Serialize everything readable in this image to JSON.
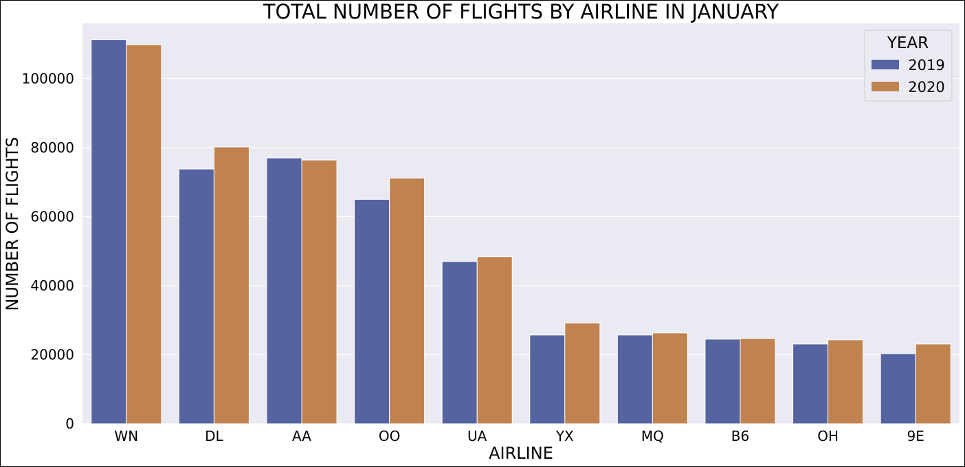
{
  "chart_data": {
    "type": "bar",
    "title": "TOTAL NUMBER OF FLIGHTS BY AIRLINE IN JANUARY",
    "xlabel": "AIRLINE",
    "ylabel": "NUMBER OF FLIGHTS",
    "categories": [
      "WN",
      "DL",
      "AA",
      "OO",
      "UA",
      "YX",
      "MQ",
      "B6",
      "OH",
      "9E"
    ],
    "series": [
      {
        "name": "2019",
        "color": "#5563a0",
        "values": [
          111300,
          73800,
          77000,
          65000,
          47000,
          25700,
          25700,
          24500,
          23100,
          20300
        ]
      },
      {
        "name": "2020",
        "color": "#c0824f",
        "values": [
          109800,
          80200,
          76400,
          71200,
          48400,
          29200,
          26300,
          24700,
          24300,
          23100
        ]
      }
    ],
    "ylim": [
      0,
      116000
    ],
    "yticks": [
      0,
      20000,
      40000,
      60000,
      80000,
      100000
    ],
    "ytick_labels": [
      "0",
      "20000",
      "40000",
      "60000",
      "80000",
      "100000"
    ],
    "grid": true,
    "legend": {
      "title": "YEAR",
      "placement": "top-right"
    }
  }
}
